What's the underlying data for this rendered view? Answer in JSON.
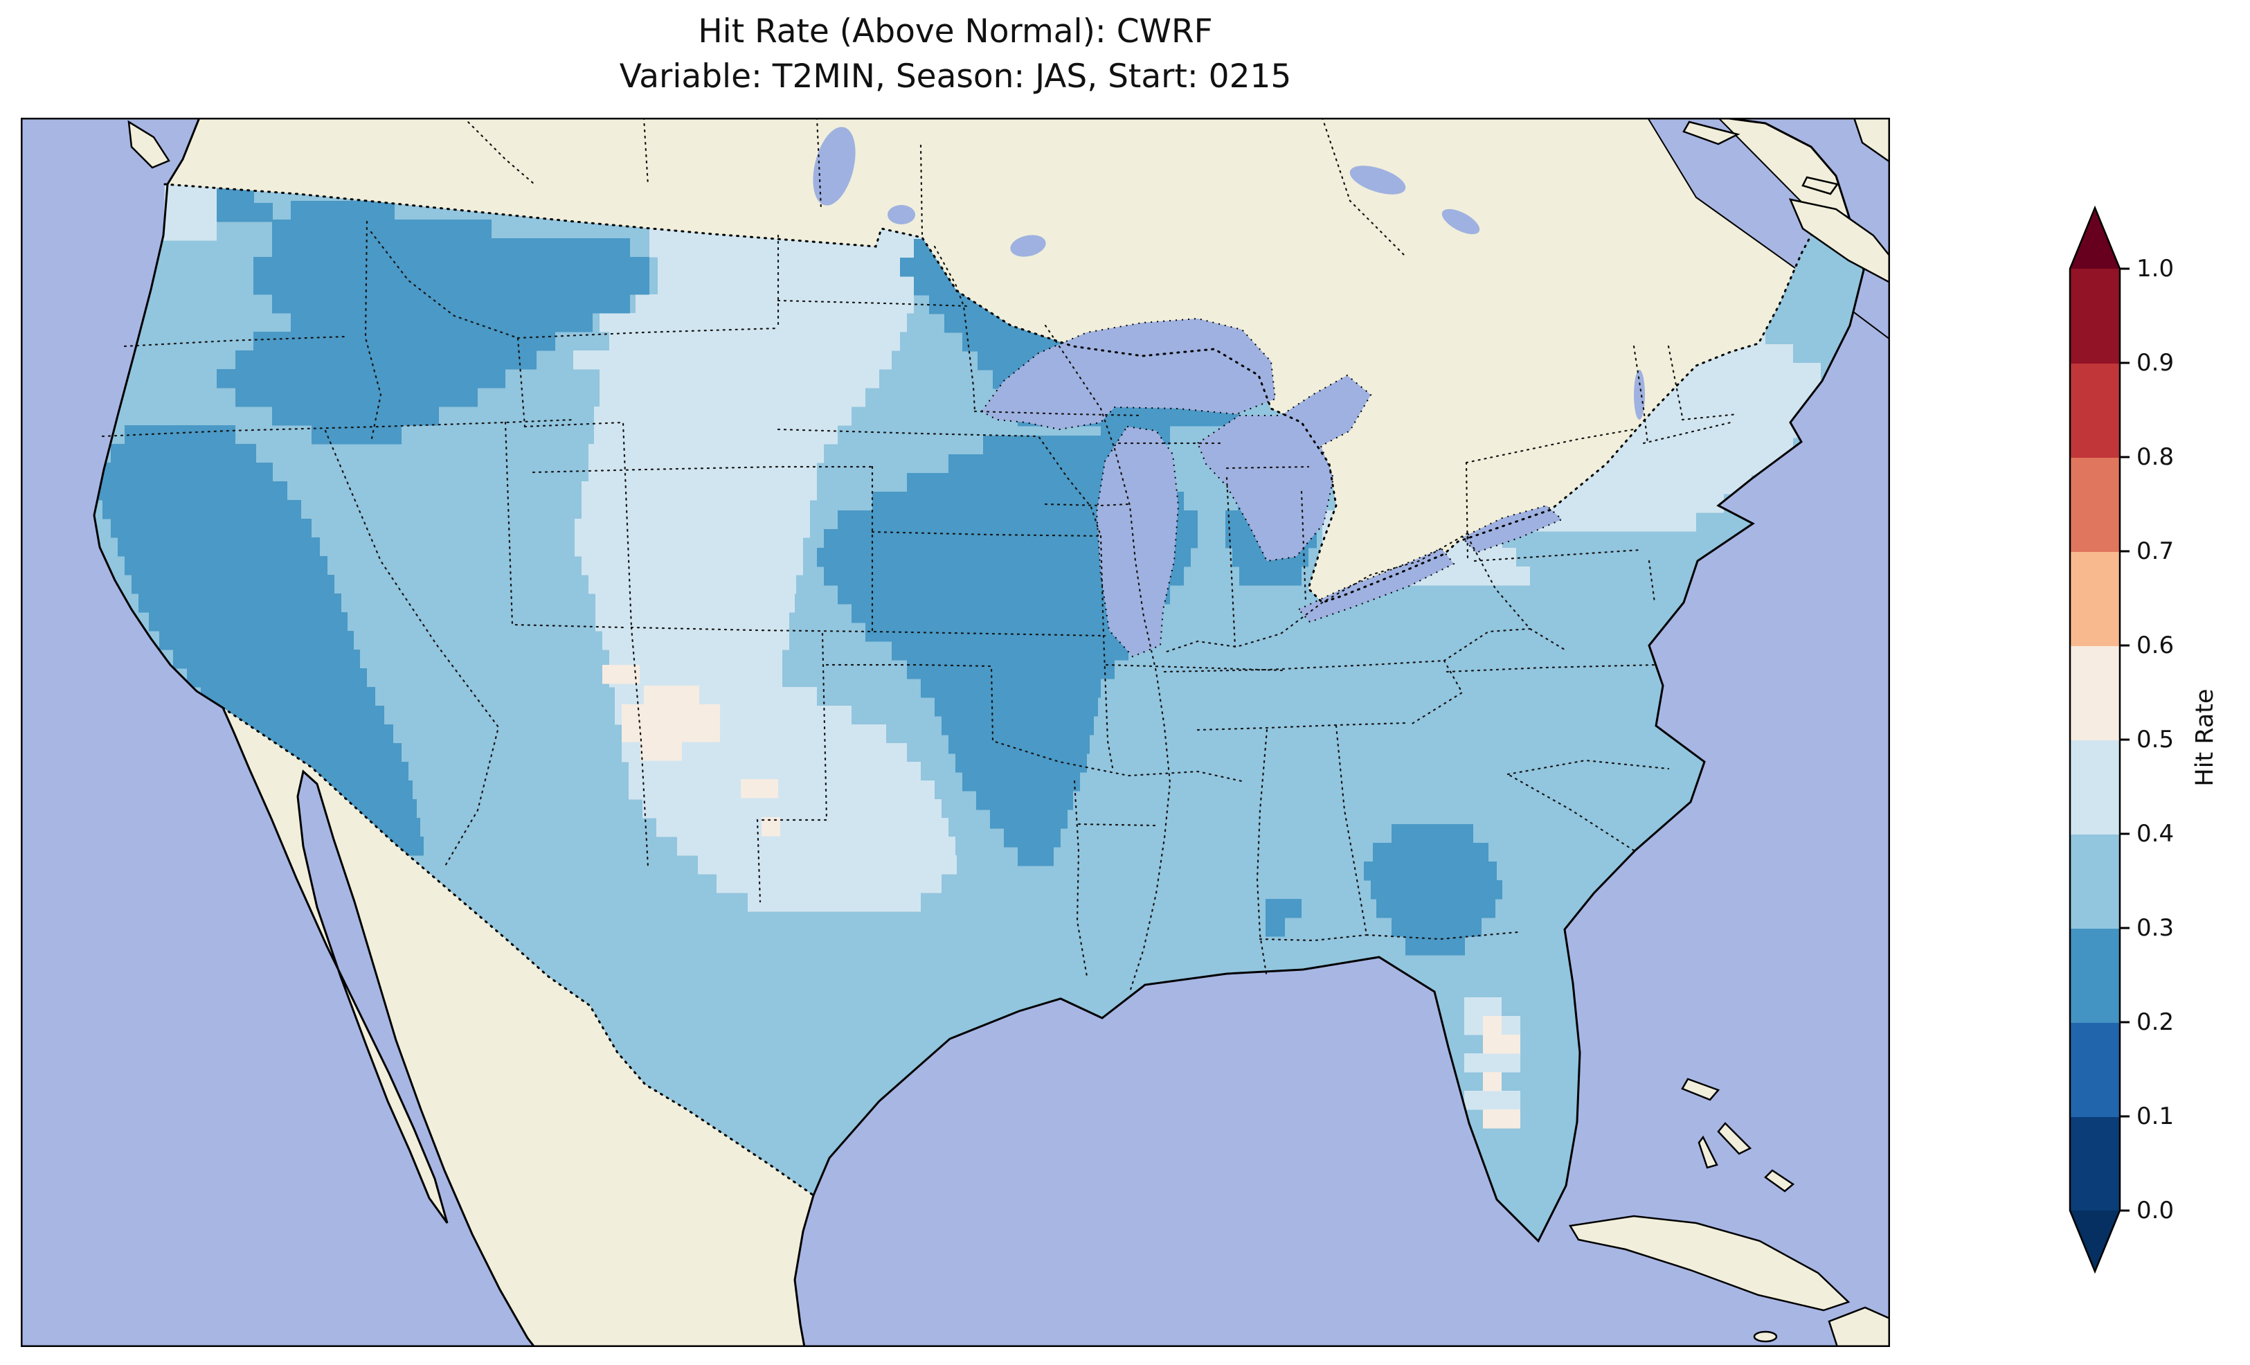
{
  "figure": {
    "title": "Hit Rate (Above Normal): CWRF",
    "subtitle": "Variable: T2MIN, Season: JAS, Start: 0215"
  },
  "colorbar": {
    "label": "Hit Rate",
    "ticks": [
      "0.0",
      "0.1",
      "0.2",
      "0.3",
      "0.4",
      "0.5",
      "0.6",
      "0.7",
      "0.8",
      "0.9",
      "1.0"
    ],
    "bins_bottom_to_top": [
      "#0b3d78",
      "#2166ac",
      "#4393c3",
      "#92c5de",
      "#d1e5f0",
      "#f7ece1",
      "#f9b98f",
      "#e0765e",
      "#c13639",
      "#921226"
    ],
    "extend_low": "#053061",
    "extend_high": "#67001f"
  },
  "map_colors": {
    "ocean": "#a8b6e4",
    "lake": "#9fb1e0",
    "land_non_us": "#f1efdb",
    "us_base_fill": "#92c5de"
  },
  "chart_data": {
    "type": "heatmap",
    "title": "Hit Rate (Above Normal): CWRF",
    "subtitle": "Variable: T2MIN, Season: JAS, Start: 0215",
    "metric": "Hit Rate (Above Normal)",
    "model": "CWRF",
    "variable": "T2MIN",
    "season": "JAS",
    "start": "0215",
    "region_shown": "Contiguous United States with surrounding Canada, Mexico, Gulf of Mexico and western Atlantic",
    "colorbar": {
      "label": "Hit Rate",
      "orientation": "vertical",
      "ticks": [
        0.0,
        0.1,
        0.2,
        0.3,
        0.4,
        0.5,
        0.6,
        0.7,
        0.8,
        0.9,
        1.0
      ],
      "bin_edges": [
        0.0,
        0.1,
        0.2,
        0.3,
        0.4,
        0.5,
        0.6,
        0.7,
        0.8,
        0.9,
        1.0
      ],
      "colormap": "RdBu_r",
      "extend": "both"
    },
    "value_summary": [
      {
        "region": "Interior Pacific Northwest (E Washington, Idaho, W Montana, NE Oregon)",
        "hit_rate": "0.2-0.3"
      },
      {
        "region": "California coast and Central Valley",
        "hit_rate": "0.2-0.3"
      },
      {
        "region": "Northern Minnesota, N Wisconsin, Upper Michigan",
        "hit_rate": "0.2-0.3"
      },
      {
        "region": "Central Plains (E Nebraska, Iowa, Kansas, Oklahoma, N Texas, NW Missouri, W Illinois)",
        "hit_rate": "0.2-0.3"
      },
      {
        "region": "Indiana / W Ohio pocket",
        "hit_rate": "0.2-0.3"
      },
      {
        "region": "Central Georgia pocket and small Alabama pocket",
        "hit_rate": "0.2-0.3"
      },
      {
        "region": "High Plains corridor (E Montana, W Dakotas, Wyoming, Colorado, New Mexico, W Texas) and coastal Washington",
        "hit_rate": "0.4-0.5"
      },
      {
        "region": "Northeast (New York, New England) and Ohio",
        "hit_rate": "0.4-0.5"
      },
      {
        "region": "Scattered cells in New Mexico, W Texas and central Florida",
        "hit_rate": "0.5-0.6"
      },
      {
        "region": "Remainder of contiguous US",
        "hit_rate": "0.3-0.4"
      }
    ]
  }
}
